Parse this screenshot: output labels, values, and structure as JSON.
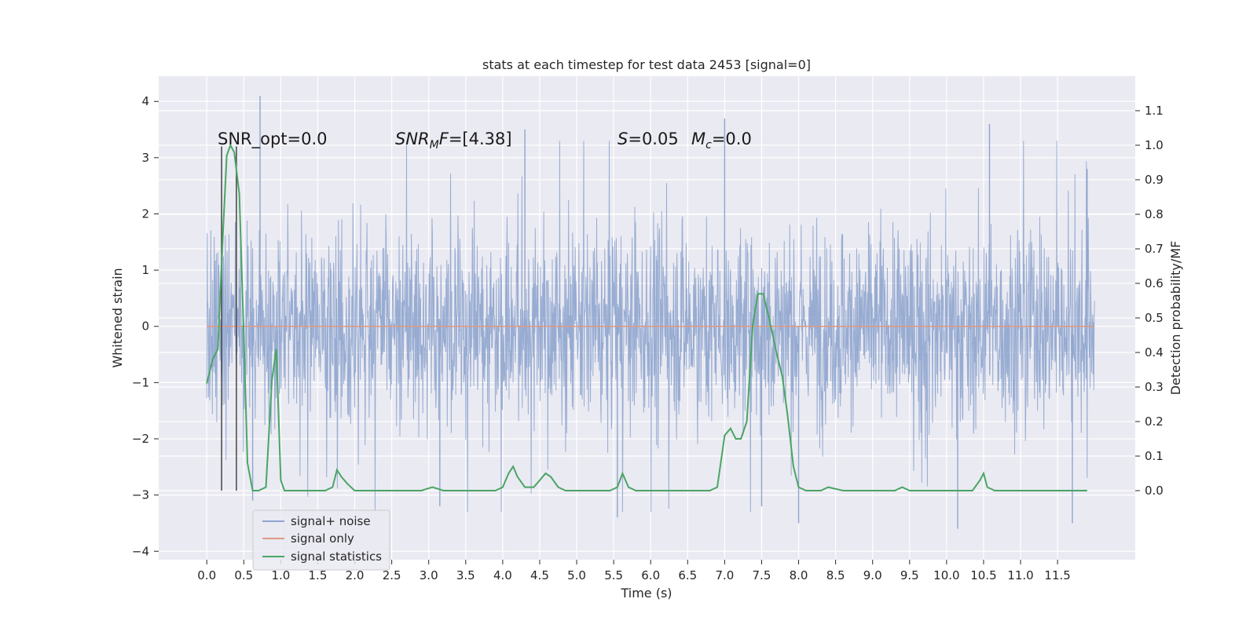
{
  "chart_data": {
    "type": "line",
    "title": "stats at each timestep for test data 2453 [signal=0]",
    "xlabel": "Time (s)",
    "ylabel": "Whitened strain",
    "y2label": "Detection probability/MF",
    "xlim": [
      -0.65,
      12.55
    ],
    "ylim": [
      -4.15,
      4.45
    ],
    "y2lim": [
      -0.2,
      1.2
    ],
    "xticks": [
      0.0,
      0.5,
      1.0,
      1.5,
      2.0,
      2.5,
      3.0,
      3.5,
      4.0,
      4.5,
      5.0,
      5.5,
      6.0,
      6.5,
      7.0,
      7.5,
      8.0,
      8.5,
      9.0,
      9.5,
      10.0,
      10.5,
      11.0,
      11.5
    ],
    "xtick_labels": [
      "0.0",
      "0.5",
      "1.0",
      "1.5",
      "2.0",
      "2.5",
      "3.0",
      "3.5",
      "4.0",
      "4.5",
      "5.0",
      "5.5",
      "6.0",
      "6.5",
      "7.0",
      "7.5",
      "8.0",
      "8.5",
      "9.0",
      "9.5",
      "10.0",
      "10.5",
      "11.0",
      "11.5"
    ],
    "yticks": [
      -4,
      -3,
      -2,
      -1,
      0,
      1,
      2,
      3,
      4
    ],
    "ytick_labels": [
      "−4",
      "−3",
      "−2",
      "−1",
      "0",
      "1",
      "2",
      "3",
      "4"
    ],
    "y2ticks": [
      0.0,
      0.1,
      0.2,
      0.3,
      0.4,
      0.5,
      0.6,
      0.7,
      0.8,
      0.9,
      1.0,
      1.1
    ],
    "y2tick_labels": [
      "0.0",
      "0.1",
      "0.2",
      "0.3",
      "0.4",
      "0.5",
      "0.6",
      "0.7",
      "0.8",
      "0.9",
      "1.0",
      "1.1"
    ],
    "grid": true,
    "legend_position": "lower-left",
    "series": [
      {
        "name": "signal+ noise",
        "color": "#8fa5ce",
        "description_units": "Whitened strain",
        "time_range": [
          0.0,
          12.0
        ],
        "typical_band": [
          -1.3,
          1.4
        ],
        "notable_peaks": [
          [
            0.72,
            4.1
          ],
          [
            0.62,
            -3.1
          ],
          [
            5.55,
            -3.4
          ],
          [
            10.15,
            -3.6
          ],
          [
            11.7,
            -3.5
          ],
          [
            3.15,
            -3.2
          ],
          [
            7.0,
            3.7
          ],
          [
            7.5,
            -3.2
          ],
          [
            8.0,
            -3.5
          ],
          [
            4.3,
            3.5
          ],
          [
            11.9,
            2.8
          ],
          [
            10.58,
            3.6
          ]
        ]
      },
      {
        "name": "signal only",
        "color": "#dd9a84",
        "points": [
          [
            0.0,
            0.0
          ],
          [
            12.0,
            0.0
          ]
        ]
      },
      {
        "name": "signal statistics",
        "color": "#4aa564",
        "axis": "right",
        "points": [
          [
            0.0,
            0.31
          ],
          [
            0.08,
            0.38
          ],
          [
            0.15,
            0.41
          ],
          [
            0.22,
            0.75
          ],
          [
            0.27,
            0.97
          ],
          [
            0.32,
            1.0
          ],
          [
            0.37,
            0.98
          ],
          [
            0.44,
            0.86
          ],
          [
            0.5,
            0.45
          ],
          [
            0.55,
            0.08
          ],
          [
            0.62,
            0.0
          ],
          [
            0.7,
            0.0
          ],
          [
            0.8,
            0.01
          ],
          [
            0.88,
            0.32
          ],
          [
            0.94,
            0.41
          ],
          [
            1.0,
            0.03
          ],
          [
            1.05,
            0.0
          ],
          [
            1.2,
            0.0
          ],
          [
            1.4,
            0.0
          ],
          [
            1.6,
            0.0
          ],
          [
            1.7,
            0.01
          ],
          [
            1.76,
            0.06
          ],
          [
            1.82,
            0.04
          ],
          [
            1.9,
            0.02
          ],
          [
            2.0,
            0.0
          ],
          [
            2.3,
            0.0
          ],
          [
            2.6,
            0.0
          ],
          [
            2.9,
            0.0
          ],
          [
            3.05,
            0.01
          ],
          [
            3.2,
            0.0
          ],
          [
            3.5,
            0.0
          ],
          [
            3.75,
            0.0
          ],
          [
            3.9,
            0.0
          ],
          [
            4.0,
            0.01
          ],
          [
            4.08,
            0.05
          ],
          [
            4.14,
            0.07
          ],
          [
            4.2,
            0.04
          ],
          [
            4.3,
            0.01
          ],
          [
            4.42,
            0.01
          ],
          [
            4.5,
            0.03
          ],
          [
            4.58,
            0.05
          ],
          [
            4.65,
            0.04
          ],
          [
            4.75,
            0.01
          ],
          [
            4.85,
            0.0
          ],
          [
            5.2,
            0.0
          ],
          [
            5.45,
            0.0
          ],
          [
            5.55,
            0.01
          ],
          [
            5.62,
            0.05
          ],
          [
            5.7,
            0.01
          ],
          [
            5.8,
            0.0
          ],
          [
            6.1,
            0.0
          ],
          [
            6.5,
            0.0
          ],
          [
            6.8,
            0.0
          ],
          [
            6.9,
            0.01
          ],
          [
            7.0,
            0.16
          ],
          [
            7.08,
            0.18
          ],
          [
            7.15,
            0.15
          ],
          [
            7.22,
            0.15
          ],
          [
            7.3,
            0.2
          ],
          [
            7.38,
            0.48
          ],
          [
            7.45,
            0.57
          ],
          [
            7.52,
            0.57
          ],
          [
            7.6,
            0.5
          ],
          [
            7.7,
            0.4
          ],
          [
            7.78,
            0.33
          ],
          [
            7.85,
            0.22
          ],
          [
            7.93,
            0.07
          ],
          [
            8.0,
            0.01
          ],
          [
            8.1,
            0.0
          ],
          [
            8.3,
            0.0
          ],
          [
            8.4,
            0.01
          ],
          [
            8.6,
            0.0
          ],
          [
            9.0,
            0.0
          ],
          [
            9.3,
            0.0
          ],
          [
            9.4,
            0.01
          ],
          [
            9.5,
            0.0
          ],
          [
            10.0,
            0.0
          ],
          [
            10.35,
            0.0
          ],
          [
            10.45,
            0.03
          ],
          [
            10.5,
            0.05
          ],
          [
            10.55,
            0.01
          ],
          [
            10.65,
            0.0
          ],
          [
            11.0,
            0.0
          ],
          [
            11.5,
            0.0
          ],
          [
            11.9,
            0.0
          ]
        ]
      }
    ],
    "vertical_lines": [
      {
        "x": 0.2,
        "y_top": 3.2,
        "color": "#444444"
      },
      {
        "x": 0.4,
        "y_top": 3.2,
        "color": "#444444"
      }
    ],
    "annotations": [
      {
        "text": "SNR_opt=0.0",
        "x": 0.2,
        "y": 3.15
      },
      {
        "text": "SNR_MF=[4.38]",
        "x": 2.6,
        "y": 3.15
      },
      {
        "text": "S=0.05",
        "x": 5.6,
        "y": 3.15
      },
      {
        "text": "M_c=0.0",
        "x": 6.6,
        "y": 3.15
      }
    ],
    "legend": {
      "entries": [
        "signal+ noise",
        "signal only",
        "signal statistics"
      ]
    }
  }
}
